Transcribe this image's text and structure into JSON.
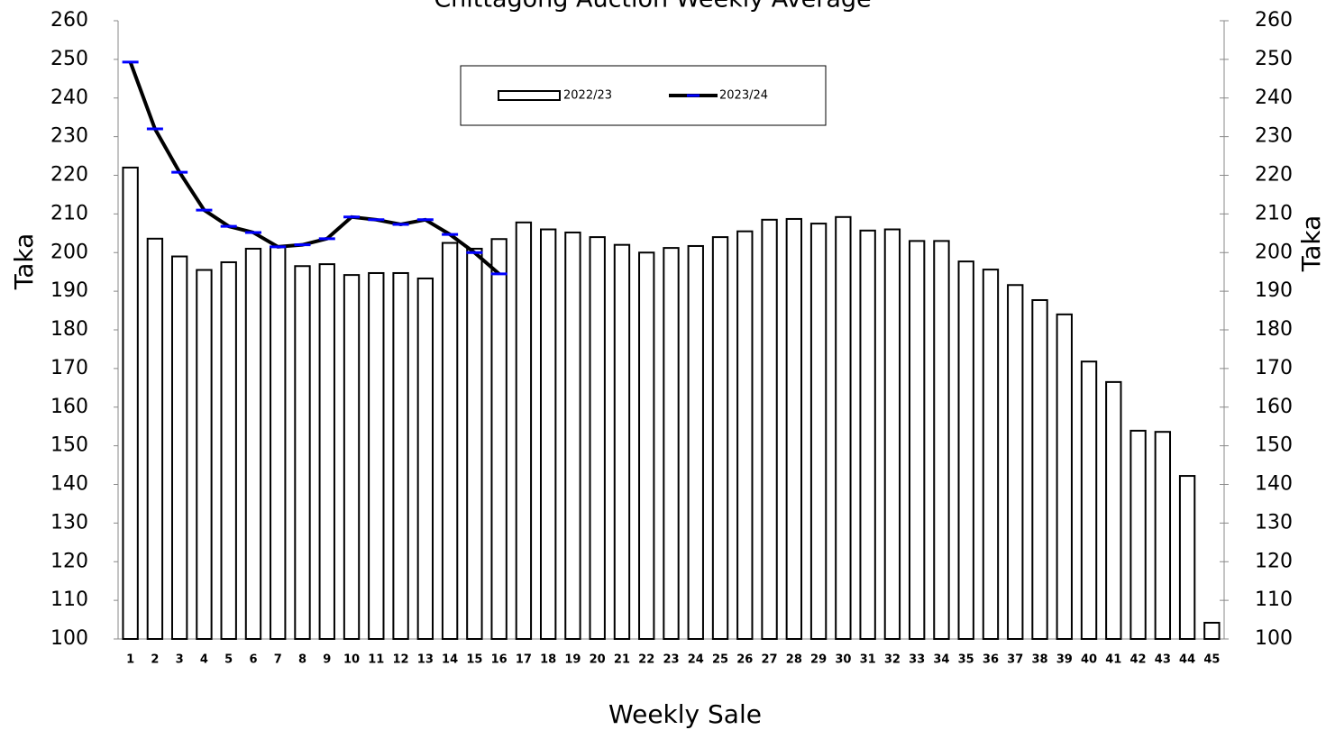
{
  "chart_data": {
    "type": "bar_line",
    "title": "Chittagong Auction Weekly Average",
    "x_label": "Weekly Sale",
    "y_label": "Taka",
    "y2_label": "Taka",
    "categories": [
      "1",
      "2",
      "3",
      "4",
      "5",
      "6",
      "7",
      "8",
      "9",
      "10",
      "11",
      "12",
      "13",
      "14",
      "15",
      "16",
      "17",
      "18",
      "19",
      "20",
      "21",
      "22",
      "23",
      "24",
      "25",
      "26",
      "27",
      "28",
      "29",
      "30",
      "31",
      "32",
      "33",
      "34",
      "35",
      "36",
      "37",
      "38",
      "39",
      "40",
      "41",
      "42",
      "43",
      "44",
      "45"
    ],
    "series": [
      {
        "name": "2022/23",
        "type": "bar",
        "color": "#ffffff",
        "edge_color": "#000000",
        "values": [
          222,
          203.6,
          199,
          195.5,
          197.5,
          201,
          201.5,
          196.5,
          197,
          194.2,
          194.7,
          194.7,
          193.3,
          202.5,
          201,
          203.5,
          207.8,
          206,
          205.2,
          204,
          202,
          200,
          201.2,
          201.7,
          204,
          205.5,
          208.5,
          208.7,
          207.5,
          209.2,
          205.7,
          206,
          203,
          203,
          197.7,
          195.6,
          191.6,
          187.7,
          184,
          171.8,
          166.5,
          153.9,
          153.6,
          142.2,
          104.2
        ]
      },
      {
        "name": "2023/24",
        "type": "line",
        "color": "#000000",
        "marker_color": "#0000ff",
        "values": [
          249.3,
          232,
          220.8,
          211,
          206.8,
          205.2,
          201.5,
          202,
          203.6,
          209.2,
          208.5,
          207.3,
          208.5,
          204.7,
          200,
          194.5,
          null,
          null,
          null,
          null,
          null,
          null,
          null,
          null,
          null,
          null,
          null,
          null,
          null,
          null,
          null,
          null,
          null,
          null,
          null,
          null,
          null,
          null,
          null,
          null,
          null,
          null,
          null,
          null,
          null
        ]
      }
    ],
    "ylim": [
      100,
      260
    ],
    "yticks": [
      100,
      110,
      120,
      130,
      140,
      150,
      160,
      170,
      180,
      190,
      200,
      210,
      220,
      230,
      240,
      250,
      260
    ],
    "y2lim": [
      100,
      260
    ],
    "y2ticks": [
      100,
      110,
      120,
      130,
      140,
      150,
      160,
      170,
      180,
      190,
      200,
      210,
      220,
      230,
      240,
      250,
      260
    ],
    "legend": "top-center"
  }
}
